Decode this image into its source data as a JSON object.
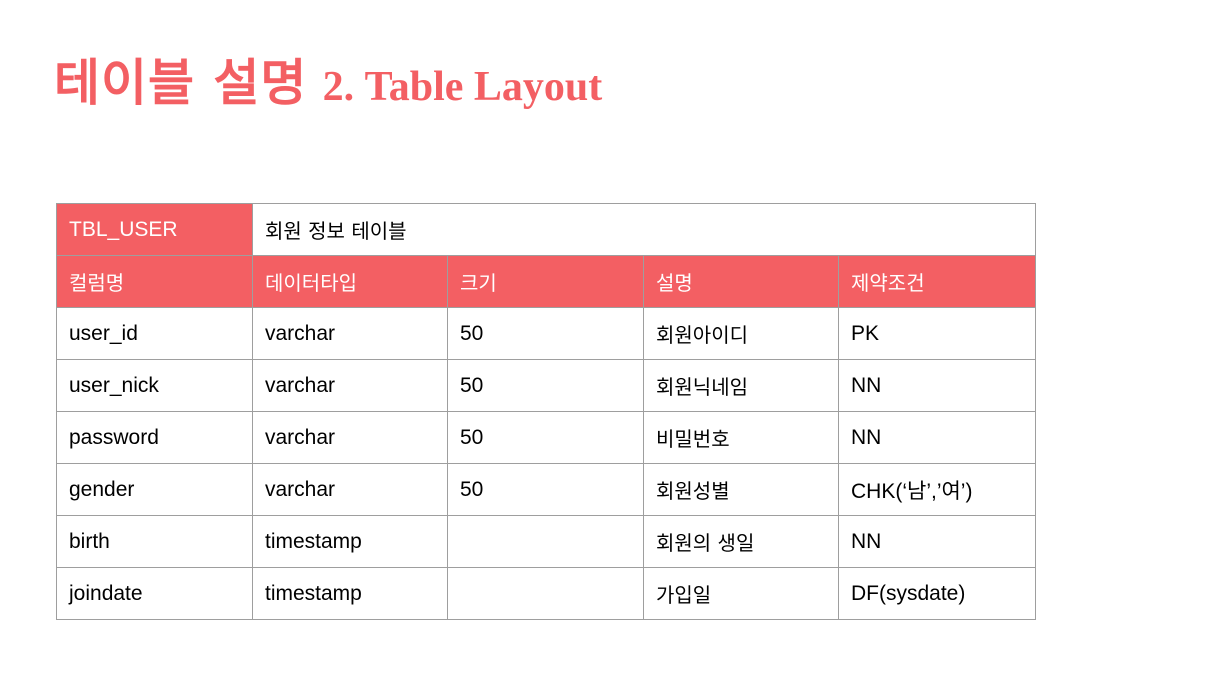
{
  "title": {
    "korean": "테이블 설명",
    "english": "2. Table Layout"
  },
  "table": {
    "name": "TBL_USER",
    "description": "회원 정보 테이블",
    "columns": [
      "컬럼명",
      "데이터타입",
      "크기",
      "설명",
      "제약조건"
    ],
    "rows": [
      [
        "user_id",
        "varchar",
        "50",
        "회원아이디",
        "PK"
      ],
      [
        "user_nick",
        "varchar",
        "50",
        "회원닉네임",
        "NN"
      ],
      [
        "password",
        "varchar",
        "50",
        "비밀번호",
        "NN"
      ],
      [
        "gender",
        "varchar",
        "50",
        "회원성별",
        "CHK(‘남’,’여’)"
      ],
      [
        "birth",
        "timestamp",
        "",
        "회원의 생일",
        "NN"
      ],
      [
        "joindate",
        "timestamp",
        "",
        "가입일",
        "DF(sysdate)"
      ]
    ]
  },
  "colors": {
    "accent": "#f35f63",
    "border": "#9e9e9e",
    "header_text": "#ffffff",
    "body_text": "#000000"
  }
}
